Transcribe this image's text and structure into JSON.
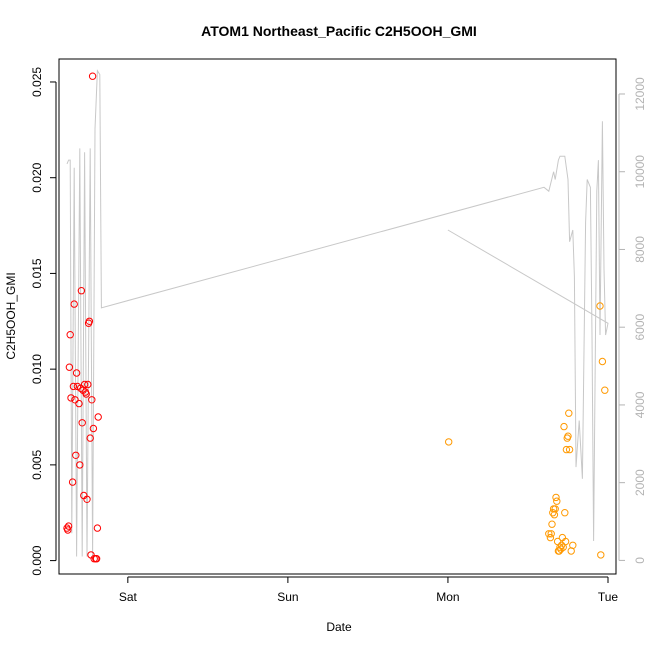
{
  "chart_data": {
    "type": "scatter",
    "title": "ATOM1 Northeast_Pacific C2H5OOH_GMI",
    "xlabel": "Date",
    "ylabel": "C2H5OOH_GMI",
    "x_unit": "days since first Saturday tick (0 = Sat, 1 = Sun, 2 = Mon, 3 = Tue)",
    "xlim": [
      -0.43,
      3.05
    ],
    "x_ticks": [
      {
        "value": 0,
        "label": "Sat"
      },
      {
        "value": 1,
        "label": "Sun"
      },
      {
        "value": 2,
        "label": "Mon"
      },
      {
        "value": 3,
        "label": "Tue"
      }
    ],
    "ylim": [
      -0.0007,
      0.0262
    ],
    "y_ticks": [
      {
        "value": 0.0,
        "label": "0.000"
      },
      {
        "value": 0.005,
        "label": "0.005"
      },
      {
        "value": 0.01,
        "label": "0.010"
      },
      {
        "value": 0.015,
        "label": "0.015"
      },
      {
        "value": 0.02,
        "label": "0.020"
      },
      {
        "value": 0.025,
        "label": "0.025"
      }
    ],
    "y2lim": [
      -350,
      12900
    ],
    "y2_ticks": [
      {
        "value": 0,
        "label": "0"
      },
      {
        "value": 2000,
        "label": "2000"
      },
      {
        "value": 4000,
        "label": "4000"
      },
      {
        "value": 6000,
        "label": "6000"
      },
      {
        "value": 8000,
        "label": "8000"
      },
      {
        "value": 10000,
        "label": "10000"
      },
      {
        "value": 12000,
        "label": "12000"
      }
    ],
    "grid": false,
    "legend": "none",
    "series": [
      {
        "color": "#ff0000",
        "points": [
          [
            -0.38,
            0.0017
          ],
          [
            -0.375,
            0.0016
          ],
          [
            -0.37,
            0.0018
          ],
          [
            -0.365,
            0.0101
          ],
          [
            -0.36,
            0.0118
          ],
          [
            -0.355,
            0.0085
          ],
          [
            -0.345,
            0.0041
          ],
          [
            -0.34,
            0.0091
          ],
          [
            -0.335,
            0.0134
          ],
          [
            -0.33,
            0.0084
          ],
          [
            -0.325,
            0.0055
          ],
          [
            -0.32,
            0.0098
          ],
          [
            -0.315,
            0.0091
          ],
          [
            -0.305,
            0.0082
          ],
          [
            -0.3,
            0.005
          ],
          [
            -0.295,
            0.009
          ],
          [
            -0.29,
            0.0141
          ],
          [
            -0.285,
            0.0072
          ],
          [
            -0.28,
            0.0089
          ],
          [
            -0.275,
            0.0034
          ],
          [
            -0.27,
            0.0092
          ],
          [
            -0.265,
            0.0088
          ],
          [
            -0.26,
            0.0087
          ],
          [
            -0.255,
            0.0032
          ],
          [
            -0.25,
            0.0092
          ],
          [
            -0.245,
            0.0124
          ],
          [
            -0.24,
            0.0125
          ],
          [
            -0.235,
            0.0064
          ],
          [
            -0.23,
            0.0003
          ],
          [
            -0.225,
            0.0084
          ],
          [
            -0.22,
            0.0253
          ],
          [
            -0.215,
            0.0069
          ],
          [
            -0.21,
            0.0001
          ],
          [
            -0.2,
            0.0001
          ],
          [
            -0.195,
            0.0001
          ],
          [
            -0.19,
            0.0017
          ],
          [
            -0.185,
            0.0075
          ]
        ]
      },
      {
        "color": "#ff9900",
        "points": [
          [
            2.005,
            0.0062
          ],
          [
            2.63,
            0.0014
          ],
          [
            2.64,
            0.0012
          ],
          [
            2.645,
            0.0014
          ],
          [
            2.65,
            0.0019
          ],
          [
            2.655,
            0.0025
          ],
          [
            2.66,
            0.0027
          ],
          [
            2.665,
            0.0024
          ],
          [
            2.67,
            0.0027
          ],
          [
            2.675,
            0.0033
          ],
          [
            2.68,
            0.0031
          ],
          [
            2.685,
            0.001
          ],
          [
            2.69,
            0.0005
          ],
          [
            2.695,
            0.0005
          ],
          [
            2.7,
            0.0007
          ],
          [
            2.705,
            0.0006
          ],
          [
            2.71,
            0.0008
          ],
          [
            2.715,
            0.0012
          ],
          [
            2.72,
            0.0007
          ],
          [
            2.725,
            0.007
          ],
          [
            2.73,
            0.0025
          ],
          [
            2.735,
            0.001
          ],
          [
            2.74,
            0.0058
          ],
          [
            2.745,
            0.0064
          ],
          [
            2.75,
            0.0065
          ],
          [
            2.755,
            0.0077
          ],
          [
            2.76,
            0.0058
          ],
          [
            2.77,
            0.0005
          ],
          [
            2.78,
            0.0008
          ],
          [
            2.95,
            0.0133
          ],
          [
            2.955,
            0.0003
          ],
          [
            2.965,
            0.0104
          ],
          [
            2.98,
            0.0089
          ]
        ]
      }
    ],
    "secondary_line": {
      "color": "#c8c8c8",
      "axis": "right",
      "points": [
        [
          -0.38,
          10200
        ],
        [
          -0.37,
          10300
        ],
        [
          -0.36,
          10300
        ],
        [
          -0.35,
          700
        ],
        [
          -0.335,
          10100
        ],
        [
          -0.32,
          100
        ],
        [
          -0.3,
          10600
        ],
        [
          -0.285,
          100
        ],
        [
          -0.27,
          10500
        ],
        [
          -0.255,
          100
        ],
        [
          -0.235,
          10600
        ],
        [
          -0.22,
          100
        ],
        [
          -0.205,
          11100
        ],
        [
          -0.19,
          12600
        ],
        [
          -0.175,
          12500
        ],
        [
          -0.165,
          6500
        ],
        [
          2.6,
          9600
        ],
        [
          2.63,
          9500
        ],
        [
          2.66,
          10000
        ],
        [
          2.67,
          9800
        ],
        [
          2.69,
          10300
        ],
        [
          2.7,
          10400
        ],
        [
          2.73,
          10400
        ],
        [
          2.75,
          9800
        ],
        [
          2.76,
          8200
        ],
        [
          2.78,
          8500
        ],
        [
          2.79,
          7300
        ],
        [
          2.8,
          2400
        ],
        [
          2.82,
          3600
        ],
        [
          2.84,
          2100
        ],
        [
          2.86,
          8700
        ],
        [
          2.87,
          9800
        ],
        [
          2.89,
          9600
        ],
        [
          2.9,
          5800
        ],
        [
          2.91,
          500
        ],
        [
          2.93,
          9500
        ],
        [
          2.94,
          10300
        ],
        [
          2.95,
          5800
        ],
        [
          2.965,
          11300
        ],
        [
          2.975,
          7500
        ],
        [
          2.985,
          5800
        ],
        [
          3.0,
          6100
        ],
        [
          2.0,
          8500
        ]
      ]
    }
  }
}
